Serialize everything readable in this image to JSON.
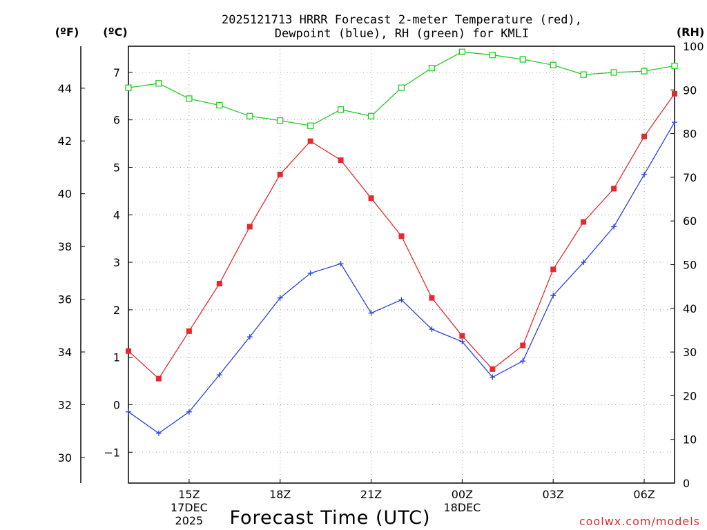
{
  "title_line1": "2025121713 HRRR Forecast 2-meter Temperature (red),",
  "title_line2": "Dewpoint (blue), RH (green) for KMLI",
  "units": {
    "fahrenheit": "(ºF)",
    "celsius": "(ºC)",
    "rh": "(RH)"
  },
  "xlabel": "Forecast Time (UTC)",
  "credit": "coolwx.com/models",
  "colors": {
    "temperature": "#e8282e",
    "dewpoint": "#2a3fe0",
    "rh": "#22cc22",
    "credit": "#d43030"
  },
  "chart_data": {
    "type": "line",
    "title": "2025121713 HRRR Forecast 2-meter Temperature (red), Dewpoint (blue), RH (green) for KMLI",
    "xlabel": "Forecast Time (UTC)",
    "x_hours_from_13Z": [
      0,
      1,
      2,
      3,
      4,
      5,
      6,
      7,
      8,
      9,
      10,
      11,
      12,
      13,
      14,
      15,
      16,
      17,
      18
    ],
    "x_ticks": [
      {
        "hour": 2,
        "lines": [
          "15Z",
          "17DEC",
          "2025"
        ]
      },
      {
        "hour": 5,
        "lines": [
          "18Z"
        ]
      },
      {
        "hour": 8,
        "lines": [
          "21Z"
        ]
      },
      {
        "hour": 11,
        "lines": [
          "00Z",
          "18DEC"
        ]
      },
      {
        "hour": 14,
        "lines": [
          "03Z"
        ]
      },
      {
        "hour": 17,
        "lines": [
          "06Z"
        ]
      }
    ],
    "y_left_celsius": {
      "range": [
        -1.65,
        7.55
      ],
      "ticks": [
        "-1",
        "0",
        "1",
        "2",
        "3",
        "4",
        "5",
        "6",
        "7"
      ]
    },
    "y_left_fahrenheit": {
      "ticks": [
        "30",
        "32",
        "34",
        "36",
        "38",
        "40",
        "42",
        "44"
      ]
    },
    "y_right_rh": {
      "range": [
        0,
        100
      ],
      "ticks": [
        "0",
        "10",
        "20",
        "30",
        "40",
        "50",
        "60",
        "70",
        "80",
        "90",
        "100"
      ]
    },
    "series": [
      {
        "name": "Temperature (°C)",
        "color": "red",
        "axis": "celsius",
        "values": [
          1.13,
          0.55,
          1.55,
          2.55,
          3.75,
          4.85,
          5.55,
          5.15,
          4.35,
          3.55,
          2.25,
          1.45,
          0.75,
          1.25,
          2.85,
          3.85,
          4.55,
          5.65,
          6.55
        ]
      },
      {
        "name": "Dewpoint (°C)",
        "color": "blue",
        "axis": "celsius",
        "values": [
          -0.15,
          -0.6,
          -0.15,
          0.63,
          1.43,
          2.25,
          2.77,
          2.97,
          1.93,
          2.21,
          1.59,
          1.33,
          0.58,
          0.92,
          2.3,
          3.0,
          3.75,
          4.85,
          5.95
        ]
      },
      {
        "name": "RH (%)",
        "color": "green",
        "axis": "rh",
        "values": [
          90.5,
          91.5,
          88,
          86.5,
          84,
          83,
          81.8,
          85.5,
          84,
          90.5,
          95,
          98.7,
          98,
          97,
          95.7,
          93.5,
          94,
          94.3,
          95.5
        ]
      }
    ]
  }
}
